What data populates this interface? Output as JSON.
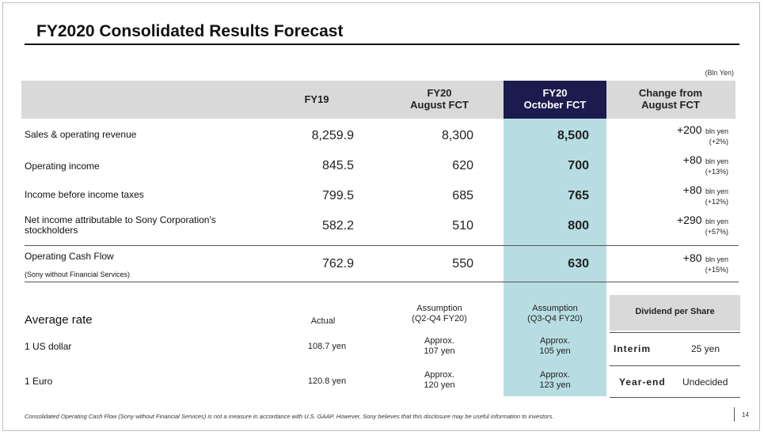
{
  "title": "FY2020 Consolidated Results Forecast",
  "unit": "(Bln Yen)",
  "headers": {
    "fy19": "FY19",
    "aug_line1": "FY20",
    "aug_line2": "August FCT",
    "oct_line1": "FY20",
    "oct_line2": "October FCT",
    "chg_line1": "Change from",
    "chg_line2": "August FCT"
  },
  "rows": [
    {
      "label": "Sales & operating revenue",
      "fy19": "8,259.9",
      "aug": "8,300",
      "oct": "8,500",
      "chg": "+200",
      "chg_unit": "bln yen",
      "pct": "(+2%)"
    },
    {
      "label": "Operating income",
      "fy19": "845.5",
      "aug": "620",
      "oct": "700",
      "chg": "+80",
      "chg_unit": "bln yen",
      "pct": "(+13%)"
    },
    {
      "label": "Income before income taxes",
      "fy19": "799.5",
      "aug": "685",
      "oct": "765",
      "chg": "+80",
      "chg_unit": "bln yen",
      "pct": "(+12%)"
    },
    {
      "label": "Net income attributable to Sony Corporation's stockholders",
      "fy19": "582.2",
      "aug": "510",
      "oct": "800",
      "chg": "+290",
      "chg_unit": "bln yen",
      "pct": "(+57%)"
    },
    {
      "label": "Operating Cash Flow",
      "sublabel": "(Sony without Financial Services)",
      "fy19": "762.9",
      "aug": "550",
      "oct": "630",
      "chg": "+80",
      "chg_unit": "bln yen",
      "pct": "(+15%)"
    }
  ],
  "rates": {
    "title": "Average rate",
    "actual": "Actual",
    "aug_assumption_1": "Assumption",
    "aug_assumption_2": "(Q2-Q4 FY20)",
    "oct_assumption_1": "Assumption",
    "oct_assumption_2": "(Q3-Q4 FY20)",
    "usd_label": "1 US dollar",
    "usd_actual": "108.7 yen",
    "usd_aug_1": "Approx.",
    "usd_aug_2": "107 yen",
    "usd_oct_1": "Approx.",
    "usd_oct_2": "105 yen",
    "eur_label": "1 Euro",
    "eur_actual": "120.8 yen",
    "eur_aug_1": "Approx.",
    "eur_aug_2": "120 yen",
    "eur_oct_1": "Approx.",
    "eur_oct_2": "123 yen"
  },
  "dividend": {
    "title": "Dividend per Share",
    "interim_label": "Interim",
    "interim_value": "25 yen",
    "yearend_label": "Year-end",
    "yearend_value": "Undecided"
  },
  "footnote": "Consolidated Operating Cash Flow (Sony without Financial Services) is not a measure in accordance with U.S. GAAP.  However, Sony believes that this disclosure may be useful information to investors.",
  "page_number": "14"
}
